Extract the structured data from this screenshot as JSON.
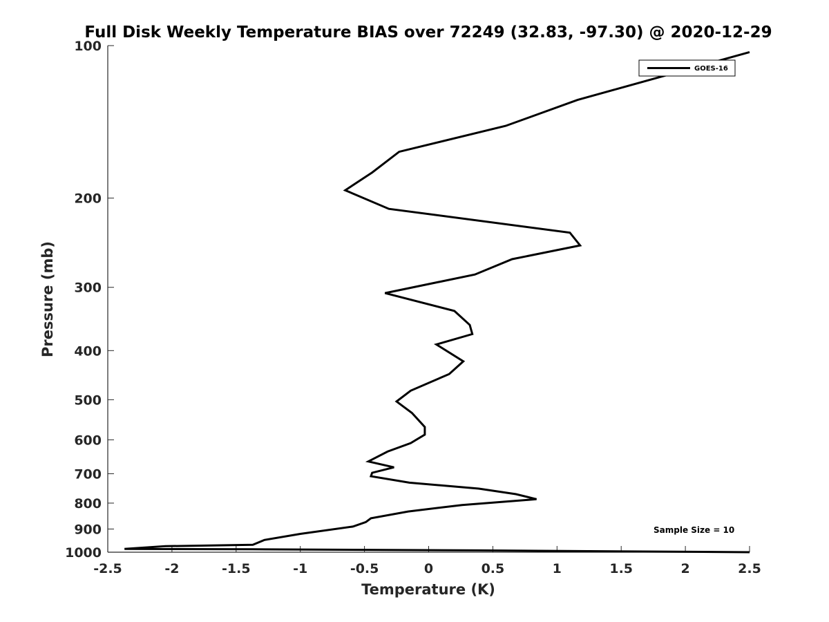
{
  "chart_data": {
    "type": "line",
    "title": "Full Disk Weekly Temperature BIAS over 72249 (32.83, -97.30) @ 2020-12-29",
    "xlabel": "Temperature (K)",
    "ylabel": "Pressure (mb)",
    "xlim": [
      -2.5,
      2.5
    ],
    "ylim": [
      100,
      1000
    ],
    "y_scale": "log",
    "y_reversed": true,
    "x_ticks": [
      -2.5,
      -2,
      -1.5,
      -1,
      -0.5,
      0,
      0.5,
      1,
      1.5,
      2,
      2.5
    ],
    "x_tick_labels": [
      "-2.5",
      "-2",
      "-1.5",
      "-1",
      "-0.5",
      "0",
      "0.5",
      "1",
      "1.5",
      "2",
      "2.5"
    ],
    "y_ticks": [
      100,
      200,
      300,
      400,
      500,
      600,
      700,
      800,
      900,
      1000
    ],
    "y_tick_labels": [
      "100",
      "200",
      "300",
      "400",
      "500",
      "600",
      "700",
      "800",
      "900",
      "1000"
    ],
    "grid": false,
    "legend_position": "top-right",
    "annotation": "Sample Size = 10",
    "line_color": "#000000",
    "series": [
      {
        "name": "GOES-16",
        "x": [
          2.5,
          1.16,
          0.6,
          -0.23,
          -0.44,
          -0.65,
          -0.31,
          1.1,
          1.18,
          0.65,
          0.36,
          -0.34,
          0.2,
          0.32,
          0.34,
          0.06,
          0.27,
          0.16,
          -0.14,
          -0.25,
          -0.13,
          -0.03,
          -0.03,
          -0.14,
          -0.32,
          -0.47,
          -0.27,
          -0.44,
          -0.45,
          -0.15,
          0.39,
          0.68,
          0.84,
          0.26,
          -0.16,
          -0.45,
          -0.49,
          -0.59,
          -1.0,
          -1.28,
          -1.37,
          -2.05,
          -2.37,
          -1.37,
          0.4,
          2.5
        ],
        "y": [
          103,
          128,
          144,
          162,
          178,
          193,
          210,
          234,
          248,
          264,
          283,
          308,
          334,
          356,
          371,
          389,
          420,
          445,
          480,
          504,
          531,
          566,
          586,
          609,
          633,
          662,
          680,
          697,
          708,
          729,
          749,
          768,
          786,
          807,
          831,
          857,
          872,
          890,
          920,
          946,
          967,
          973,
          985,
          987,
          992,
          1000
        ]
      }
    ]
  }
}
